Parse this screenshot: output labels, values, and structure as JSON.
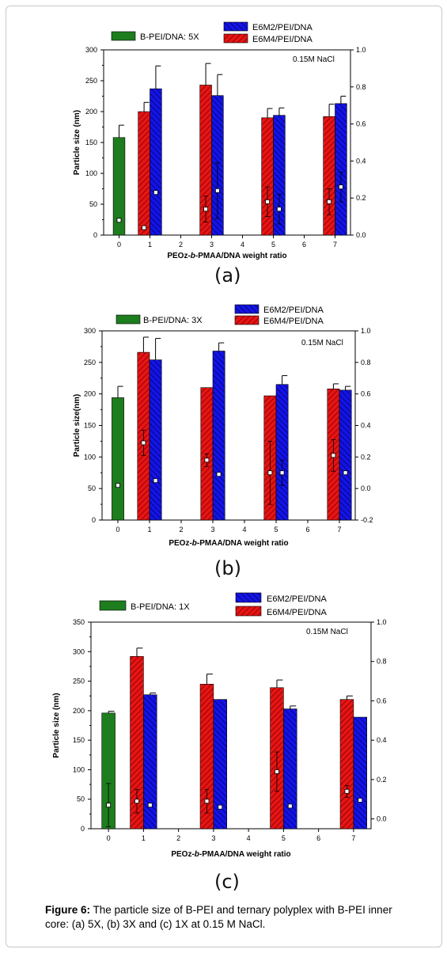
{
  "colors": {
    "green": "#1e7d1e",
    "blue": "#1414e6",
    "red": "#e81414",
    "error_bar": "#000000",
    "marker": "#ffffff"
  },
  "chart_data": [
    {
      "type": "bar",
      "panel_label": "(a)",
      "xlabel": "PEOz-b-PMAA/DNA weight ratio",
      "ylabel": "Particle size (nm)",
      "annotation": "0.15M NaCl",
      "x_ticks": [
        "0",
        "1",
        "2",
        "3",
        "4",
        "5",
        "6",
        "7"
      ],
      "xlim": [
        -0.5,
        7.5
      ],
      "ylim": [
        0,
        300
      ],
      "y_ticks": [
        "0",
        "50",
        "100",
        "150",
        "200",
        "250",
        "300"
      ],
      "y2lim": [
        0,
        1.0
      ],
      "y2_ticks": [
        "0.0",
        "0.2",
        "0.4",
        "0.6",
        "0.8",
        "1.0"
      ],
      "legend": [
        "B-PEI/DNA: 5X",
        "E6M2/PEI/DNA",
        "E6M4/PEI/DNA"
      ],
      "series": [
        {
          "name": "B-PEI/DNA: 5X",
          "color": "green",
          "x": [
            0
          ],
          "values": [
            158
          ],
          "errors": [
            20
          ]
        },
        {
          "name": "E6M4/PEI/DNA",
          "color": "red",
          "x": [
            1,
            3,
            5,
            7
          ],
          "values": [
            200,
            243,
            190,
            192
          ],
          "errors": [
            15,
            35,
            15,
            20
          ]
        },
        {
          "name": "E6M2/PEI/DNA",
          "color": "blue",
          "x": [
            1,
            3,
            5,
            7
          ],
          "values": [
            237,
            226,
            194,
            213
          ],
          "errors": [
            37,
            34,
            12,
            12
          ]
        }
      ],
      "secondary_points": [
        {
          "x": 0,
          "y": 0.08,
          "error": 0
        },
        {
          "x": 1,
          "y": 0.04,
          "error": 0
        },
        {
          "x": 1,
          "y": 0.23,
          "error": 0
        },
        {
          "x": 3,
          "y": 0.14,
          "error": 0.07
        },
        {
          "x": 3,
          "y": 0.24,
          "error": 0.15
        },
        {
          "x": 5,
          "y": 0.18,
          "error": 0.08
        },
        {
          "x": 5,
          "y": 0.14,
          "error": 0.08
        },
        {
          "x": 7,
          "y": 0.18,
          "error": 0.07
        },
        {
          "x": 7,
          "y": 0.26,
          "error": 0.08
        }
      ]
    },
    {
      "type": "bar",
      "panel_label": "(b)",
      "xlabel": "PEOz-b-PMAA/DNA weight ratio",
      "ylabel": "Particle size(nm)",
      "annotation": "0.15M NaCl",
      "x_ticks": [
        "0",
        "1",
        "2",
        "3",
        "4",
        "5",
        "6",
        "7"
      ],
      "xlim": [
        -0.5,
        7.5
      ],
      "ylim": [
        0,
        300
      ],
      "y_ticks": [
        "0",
        "50",
        "100",
        "150",
        "200",
        "250",
        "300"
      ],
      "y2lim": [
        -0.2,
        1.0
      ],
      "y2_ticks": [
        "-0.2",
        "0.0",
        "0.2",
        "0.4",
        "0.6",
        "0.8",
        "1.0"
      ],
      "legend": [
        "B-PEI/DNA: 3X",
        "E6M2/PEI/DNA",
        "E6M4/PEI/DNA"
      ],
      "series": [
        {
          "name": "B-PEI/DNA: 3X",
          "color": "green",
          "x": [
            0
          ],
          "values": [
            194
          ],
          "errors": [
            18
          ]
        },
        {
          "name": "E6M4/PEI/DNA",
          "color": "red",
          "x": [
            1,
            3,
            5,
            7
          ],
          "values": [
            266,
            210,
            197,
            208
          ],
          "errors": [
            24,
            0,
            0,
            8
          ]
        },
        {
          "name": "E6M2/PEI/DNA",
          "color": "blue",
          "x": [
            1,
            3,
            5,
            7
          ],
          "values": [
            254,
            268,
            215,
            206
          ],
          "errors": [
            34,
            13,
            14,
            6
          ]
        }
      ],
      "secondary_points": [
        {
          "x": 0,
          "y": 0.02,
          "error": 0
        },
        {
          "x": 1,
          "y": 0.29,
          "error": 0.08
        },
        {
          "x": 1,
          "y": 0.05,
          "error": 0
        },
        {
          "x": 3,
          "y": 0.18,
          "error": 0.04
        },
        {
          "x": 3,
          "y": 0.09,
          "error": 0
        },
        {
          "x": 5,
          "y": 0.1,
          "error": 0.2
        },
        {
          "x": 5,
          "y": 0.1,
          "error": 0.08
        },
        {
          "x": 7,
          "y": 0.21,
          "error": 0.1
        },
        {
          "x": 7,
          "y": 0.1,
          "error": 0
        }
      ]
    },
    {
      "type": "bar",
      "panel_label": "(c)",
      "xlabel": "PEOz-b-PMAA/DNA weight ratio",
      "ylabel": "Particle size (nm)",
      "annotation": "0.15M NaCl",
      "x_ticks": [
        "0",
        "1",
        "2",
        "3",
        "4",
        "5",
        "6",
        "7"
      ],
      "xlim": [
        -0.5,
        7.5
      ],
      "ylim": [
        0,
        350
      ],
      "y_ticks": [
        "0",
        "50",
        "100",
        "150",
        "200",
        "250",
        "300",
        "350"
      ],
      "y2lim": [
        -0.05,
        1.0
      ],
      "y2_ticks": [
        "0.0",
        "0.2",
        "0.4",
        "0.6",
        "0.8",
        "1.0"
      ],
      "legend": [
        "B-PEI/DNA: 1X",
        "E6M2/PEI/DNA",
        "E6M4/PEI/DNA"
      ],
      "series": [
        {
          "name": "B-PEI/DNA: 1X",
          "color": "green",
          "x": [
            0
          ],
          "values": [
            196
          ],
          "errors": [
            3
          ]
        },
        {
          "name": "E6M4/PEI/DNA",
          "color": "red",
          "x": [
            1,
            3,
            5,
            7
          ],
          "values": [
            292,
            245,
            239,
            219
          ],
          "errors": [
            14,
            17,
            13,
            6
          ]
        },
        {
          "name": "E6M2/PEI/DNA",
          "color": "blue",
          "x": [
            1,
            3,
            5,
            7
          ],
          "values": [
            227,
            219,
            203,
            189
          ],
          "errors": [
            3,
            0,
            5,
            0
          ]
        }
      ],
      "secondary_points": [
        {
          "x": 0,
          "y": 0.07,
          "error": 0.11
        },
        {
          "x": 1,
          "y": 0.09,
          "error": 0.06
        },
        {
          "x": 1,
          "y": 0.07,
          "error": 0
        },
        {
          "x": 3,
          "y": 0.09,
          "error": 0.06
        },
        {
          "x": 3,
          "y": 0.06,
          "error": 0
        },
        {
          "x": 5,
          "y": 0.24,
          "error": 0.1
        },
        {
          "x": 5,
          "y": 0.065,
          "error": 0
        },
        {
          "x": 7,
          "y": 0.14,
          "error": 0.03
        },
        {
          "x": 7,
          "y": 0.095,
          "error": 0
        }
      ]
    }
  ],
  "caption": {
    "label": "Figure 6:",
    "text": " The particle size of B-PEI and ternary polyplex with B-PEI inner core: (a) 5X, (b) 3X and (c) 1X at 0.15 M NaCl."
  }
}
